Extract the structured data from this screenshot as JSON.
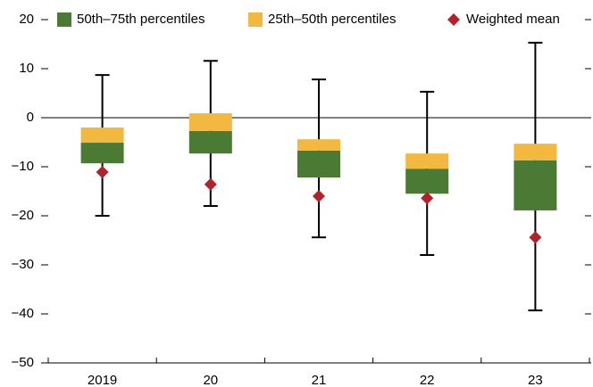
{
  "chart_data": {
    "type": "box",
    "categories": [
      "2019",
      "20",
      "21",
      "22",
      "23"
    ],
    "ylim": [
      -50,
      20
    ],
    "yticks": [
      {
        "value": -50,
        "label": "−50"
      },
      {
        "value": -40,
        "label": "−40"
      },
      {
        "value": -30,
        "label": "−30"
      },
      {
        "value": -20,
        "label": "−20"
      },
      {
        "value": -10,
        "label": "−10"
      },
      0,
      10,
      20
    ],
    "whiskers": {
      "low": [
        -20,
        -18,
        -24.4,
        -28,
        -39.3
      ],
      "high": [
        8.7,
        11.6,
        7.8,
        5.3,
        15.3
      ]
    },
    "series": [
      {
        "name": "50th–75th percentiles",
        "color": "#4a7a33",
        "low": [
          -9.3,
          -7.3,
          -12.2,
          -15.5,
          -18.9
        ],
        "high": [
          -5.1,
          -2.7,
          -6.7,
          -10.4,
          -8.7
        ]
      },
      {
        "name": "25th–50th percentiles",
        "color": "#f3b83f",
        "low": [
          -5.1,
          -2.7,
          -6.7,
          -10.4,
          -8.7
        ],
        "high": [
          -2,
          0.9,
          -4.4,
          -7.3,
          -5.3
        ]
      },
      {
        "name": "Weighted mean",
        "color": "#b3212b",
        "values": [
          -11.1,
          -13.6,
          -16,
          -16.4,
          -24.4
        ]
      }
    ]
  }
}
